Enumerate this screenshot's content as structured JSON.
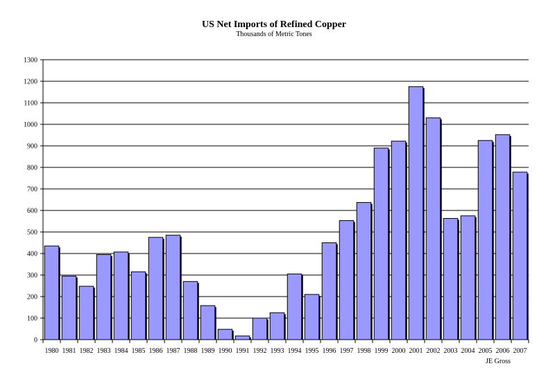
{
  "chart_data": {
    "type": "bar",
    "title": "US Net Imports of Refined Copper",
    "subtitle": "Thousands of Metric Tones",
    "credit": "JE Gross",
    "categories": [
      "1980",
      "1981",
      "1982",
      "1983",
      "1984",
      "1985",
      "1986",
      "1987",
      "1988",
      "1989",
      "1990",
      "1991",
      "1992",
      "1993",
      "1994",
      "1995",
      "1996",
      "1997",
      "1998",
      "1999",
      "2000",
      "2001",
      "2002",
      "2003",
      "2004",
      "2005",
      "2006",
      "2007"
    ],
    "values": [
      435,
      295,
      248,
      395,
      407,
      315,
      475,
      485,
      270,
      158,
      48,
      17,
      100,
      125,
      305,
      210,
      450,
      553,
      637,
      890,
      922,
      1175,
      1030,
      563,
      575,
      925,
      952,
      778
    ],
    "ylim": [
      0,
      1300
    ],
    "yticks": [
      0,
      100,
      200,
      300,
      400,
      500,
      600,
      700,
      800,
      900,
      1000,
      1100,
      1200,
      1300
    ],
    "grid": true,
    "colors": {
      "bar_fill": "#9999ff",
      "bar_stroke": "#000000",
      "grid": "#000000"
    }
  }
}
